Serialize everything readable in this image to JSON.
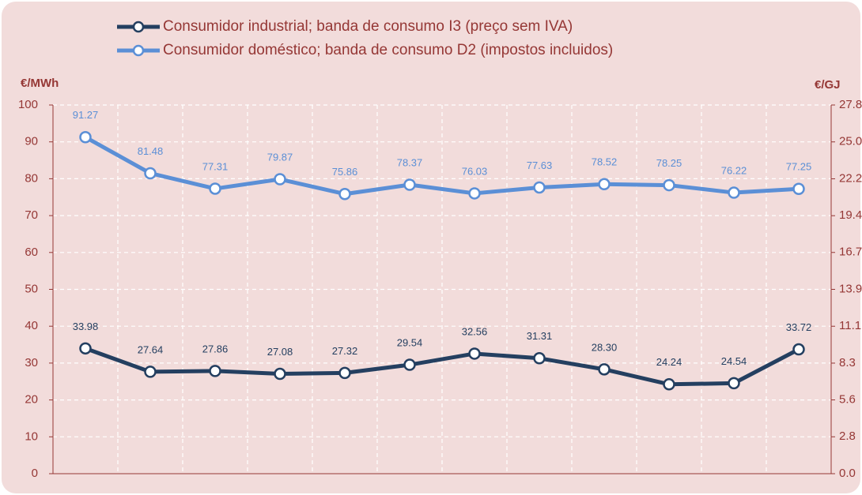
{
  "chart_data": {
    "type": "line",
    "y_label": "€/MWh",
    "y2_label": "€/GJ",
    "categories": [
      null,
      null,
      null,
      null,
      null,
      null,
      null,
      null,
      null,
      null,
      null,
      null
    ],
    "series": [
      {
        "name": "Consumidor industrial; banda de consumo I3 (preço sem IVA)",
        "color": "#243f60",
        "values": [
          33.98,
          27.64,
          27.86,
          27.08,
          27.32,
          29.54,
          32.56,
          31.31,
          28.3,
          24.24,
          24.54,
          33.72
        ],
        "value_labels": [
          "33.98",
          "27.64",
          "27.86",
          "27.08",
          "27.32",
          "29.54",
          "32.56",
          "31.31",
          "28.30",
          "24.24",
          "24.54",
          "33.72"
        ]
      },
      {
        "name": "Consumidor doméstico; banda de consumo D2 (impostos incluidos)",
        "color": "#5b8fd6",
        "values": [
          91.27,
          81.48,
          77.31,
          79.87,
          75.86,
          78.37,
          76.03,
          77.63,
          78.52,
          78.25,
          76.22,
          77.25
        ],
        "value_labels": [
          "91.27",
          "81.48",
          "77.31",
          "79.87",
          "75.86",
          "78.37",
          "76.03",
          "77.63",
          "78.52",
          "78.25",
          "76.22",
          "77.25"
        ]
      }
    ],
    "ylim": [
      0,
      100
    ],
    "yticks": [
      0,
      10,
      20,
      30,
      40,
      50,
      60,
      70,
      80,
      90,
      100
    ],
    "y2lim": [
      0,
      27.78
    ],
    "y2ticks": [
      {
        "value": 0,
        "label": "0.0"
      },
      {
        "value": 2.78,
        "label": "2.8"
      },
      {
        "value": 5.56,
        "label": "5.6"
      },
      {
        "value": 8.33,
        "label": "8.3"
      },
      {
        "value": 11.11,
        "label": "11.1"
      },
      {
        "value": 13.89,
        "label": "13.9"
      },
      {
        "value": 16.67,
        "label": "16.7"
      },
      {
        "value": 19.44,
        "label": "19.4"
      },
      {
        "value": 22.22,
        "label": "22.2"
      },
      {
        "value": 25.0,
        "label": "25.0"
      },
      {
        "value": 27.78,
        "label": "27.8"
      }
    ],
    "grid": true,
    "legend": "top"
  }
}
